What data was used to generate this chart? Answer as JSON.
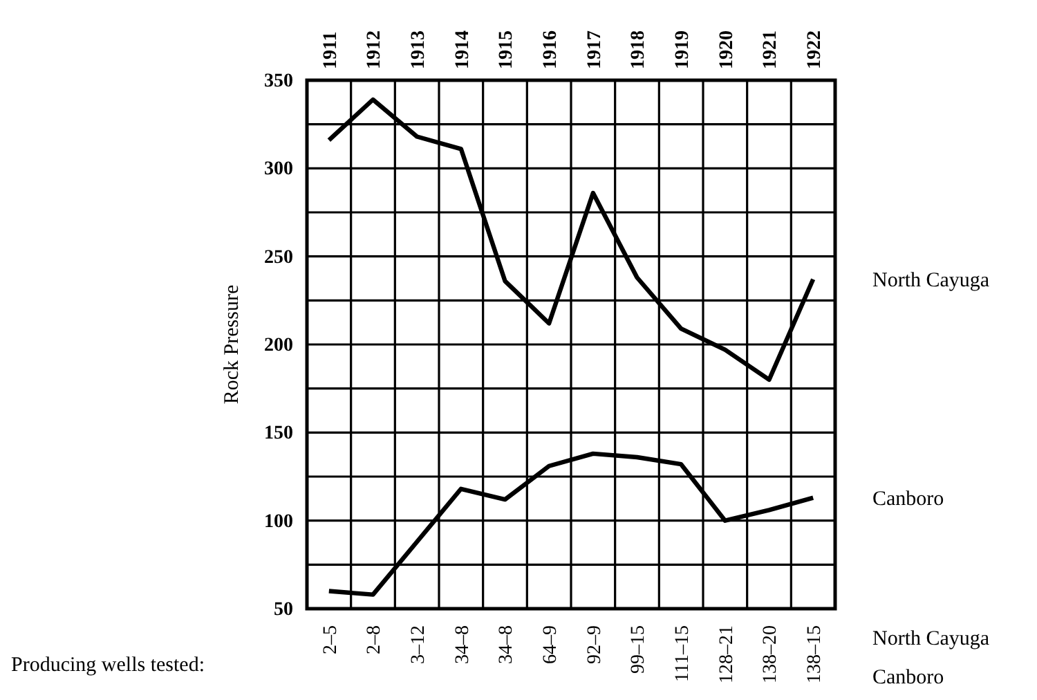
{
  "chart_data": {
    "type": "line",
    "ylabel": "Rock Pressure",
    "categories": [
      "1911",
      "1912",
      "1913",
      "1914",
      "1915",
      "1916",
      "1917",
      "1918",
      "1919",
      "1920",
      "1921",
      "1922"
    ],
    "series": [
      {
        "name": "North Cayuga",
        "color": "#000000",
        "values": [
          316,
          339,
          318,
          311,
          236,
          212,
          286,
          238,
          209,
          197,
          180,
          237
        ]
      },
      {
        "name": "Canboro",
        "color": "#000000",
        "values": [
          60,
          58,
          88,
          118,
          112,
          131,
          138,
          136,
          132,
          100,
          106,
          113
        ]
      }
    ],
    "ylim": [
      50,
      350
    ],
    "yticks": [
      50,
      {
        "value": 75,
        "label": null
      },
      100,
      {
        "value": 125,
        "label": null
      },
      150,
      {
        "value": 175,
        "label": null
      },
      200,
      {
        "value": 225,
        "label": null
      },
      250,
      {
        "value": 275,
        "label": null
      },
      300,
      {
        "value": 325,
        "label": null
      },
      350
    ],
    "grid": true,
    "legend": false,
    "marker": "none",
    "line_style": "solid",
    "annotations": [
      "Producing wells tested:",
      "North Cayuga",
      "Canboro",
      "2–5",
      "2–8",
      "3–12",
      "34–8",
      "34–8",
      "64–9",
      "92–9",
      "99–15",
      "111–15",
      "128–21",
      "138–20",
      "138–15"
    ]
  }
}
